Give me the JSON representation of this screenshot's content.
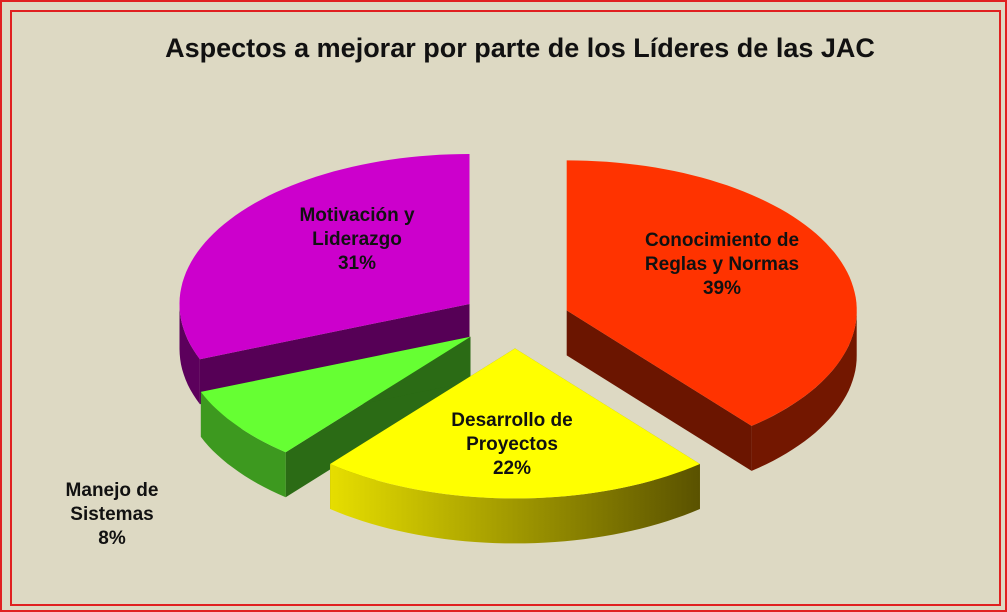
{
  "chart_data": {
    "type": "pie3d",
    "title": "Aspectos a mejorar por parte de los Líderes de las JAC",
    "categories": [
      "Conocimiento de Reglas y Normas",
      "Desarrollo de Proyectos",
      "Manejo de Sistemas",
      "Motivación y Liderazgo"
    ],
    "values": [
      39,
      22,
      8,
      31
    ],
    "value_labels": [
      "39%",
      "22%",
      "8%",
      "31%"
    ],
    "colors": [
      "#ff3300",
      "#ffff00",
      "#66ff33",
      "#cc00cc"
    ]
  }
}
